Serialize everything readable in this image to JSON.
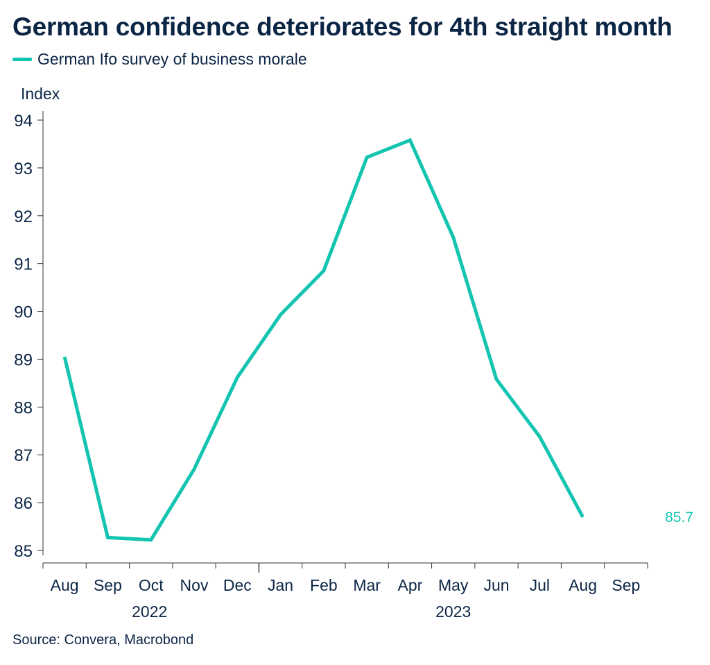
{
  "title": "German confidence deteriorates for 4th straight month",
  "source": "Source: Convera, Macrobond",
  "colors": {
    "series": "#13c4b0",
    "text": "#0b2545",
    "axis": "#0b2545"
  },
  "chart_data": {
    "type": "line",
    "title": "German confidence deteriorates for 4th straight month",
    "ylabel": "Index",
    "ylim": [
      85,
      94
    ],
    "yticks": [
      85,
      86,
      87,
      88,
      89,
      90,
      91,
      92,
      93,
      94
    ],
    "grid": false,
    "legend_position": "top-left",
    "x_tick_labels": [
      "Aug",
      "Sep",
      "Oct",
      "Nov",
      "Dec",
      "Jan",
      "Feb",
      "Mar",
      "Apr",
      "May",
      "Jun",
      "Jul",
      "Aug",
      "Sep"
    ],
    "year_labels": [
      "2022",
      "2023"
    ],
    "series": [
      {
        "name": "German Ifo survey of business morale",
        "x": [
          "2022-08",
          "2022-09",
          "2022-10",
          "2022-11",
          "2022-12",
          "2023-01",
          "2023-02",
          "2023-03",
          "2023-04",
          "2023-05",
          "2023-06",
          "2023-07",
          "2023-08"
        ],
        "values": [
          89.05,
          85.27,
          85.22,
          86.7,
          88.62,
          89.93,
          90.85,
          93.22,
          93.58,
          91.55,
          88.58,
          87.38,
          85.7
        ]
      }
    ],
    "annotations": [
      {
        "text": "85.7"
      }
    ]
  }
}
